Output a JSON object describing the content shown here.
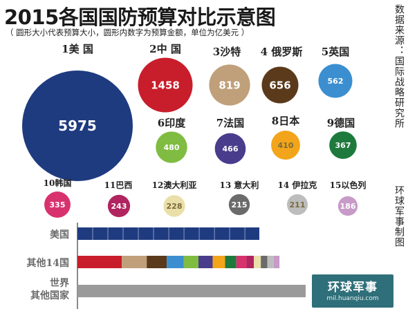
{
  "header": {
    "title": "2015各国国防预算对比示意图",
    "subtitle": "（ 圆形大小代表预算大小，圆形内数字为预算金额，单位为亿美元 ）",
    "source": "数据来源：国际战略研究所",
    "credit": "环球军事制图"
  },
  "logo": {
    "main": "环球军事",
    "url": "mil.huanqiu.com"
  },
  "chart_data": [
    {
      "type": "bubble",
      "unit": "亿美元",
      "categories": [
        "1美 国",
        "2中 国",
        "3沙特",
        "4 俄罗斯",
        "5英国",
        "6印度",
        "7法国",
        "8日本",
        "9德国",
        "10韩国",
        "11巴西",
        "12澳大利亚",
        "13 意大利",
        "14 伊拉克",
        "15以色列"
      ],
      "values": [
        5975,
        1458,
        819,
        656,
        562,
        480,
        466,
        410,
        367,
        335,
        243,
        228,
        215,
        211,
        186
      ],
      "colors": [
        "#1f3b80",
        "#c81e2b",
        "#c0a07a",
        "#5a3a1a",
        "#3b8fd0",
        "#7fbc41",
        "#4a3c8c",
        "#f2a51a",
        "#1e7a3c",
        "#d8326e",
        "#b0245f",
        "#eadfa8",
        "#6b6b6b",
        "#bdbdbd",
        "#c79ac8"
      ]
    },
    {
      "type": "bar",
      "stacked": true,
      "categories": [
        "美国",
        "其他14国",
        "世界\n其他国家"
      ]
    }
  ]
}
